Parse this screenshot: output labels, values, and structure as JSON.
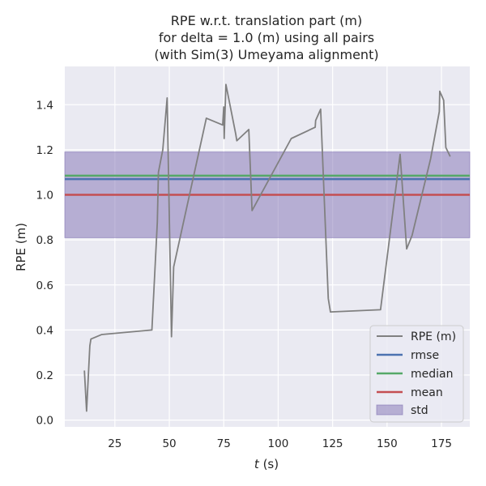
{
  "chart_data": {
    "type": "line",
    "title_lines": [
      "RPE w.r.t. translation part (m)",
      "for delta = 1.0 (m) using all pairs",
      "(with Sim(3) Umeyama alignment)"
    ],
    "xlabel_italic": "t",
    "xlabel_rest": " (s)",
    "ylabel": "RPE (m)",
    "xlim": [
      2,
      188
    ],
    "ylim": [
      -0.03,
      1.57
    ],
    "xticks": [
      25,
      50,
      75,
      100,
      125,
      150,
      175
    ],
    "xtick_labels": [
      "25",
      "50",
      "75",
      "100",
      "125",
      "150",
      "175"
    ],
    "yticks": [
      0.0,
      0.2,
      0.4,
      0.6,
      0.8,
      1.0,
      1.2,
      1.4
    ],
    "ytick_labels": [
      "0.0",
      "0.2",
      "0.4",
      "0.6",
      "0.8",
      "1.0",
      "1.2",
      "1.4"
    ],
    "grid": true,
    "legend_position": "lower-right",
    "series": [
      {
        "name": "RPE (m)",
        "color": "#808080",
        "x": [
          11,
          12,
          13.5,
          14,
          19,
          42,
          44.5,
          45,
          47,
          49,
          51,
          52,
          67,
          74.5,
          75,
          75.2,
          76,
          80.5,
          81,
          86.5,
          88,
          106,
          117,
          117.2,
          119.5,
          123,
          124,
          147,
          156,
          159,
          161.5,
          170,
          174,
          174.2,
          176,
          177,
          179
        ],
        "y": [
          0.22,
          0.04,
          0.33,
          0.36,
          0.38,
          0.4,
          0.88,
          1.1,
          1.2,
          1.43,
          0.37,
          0.68,
          1.34,
          1.31,
          1.39,
          1.25,
          1.49,
          1.27,
          1.24,
          1.29,
          0.93,
          1.25,
          1.3,
          1.33,
          1.38,
          0.54,
          0.48,
          0.49,
          1.18,
          0.76,
          0.82,
          1.16,
          1.37,
          1.46,
          1.42,
          1.21,
          1.17
        ]
      }
    ],
    "stats": {
      "rmse": 1.07,
      "median": 1.085,
      "mean": 1.0,
      "std_band": [
        0.81,
        1.19
      ]
    },
    "legend_labels": {
      "series": "RPE (m)",
      "rmse": "rmse",
      "median": "median",
      "mean": "mean",
      "std": "std"
    },
    "colors": {
      "plot_background": "#eaeaf2",
      "grid": "#ffffff",
      "rmse": "#4c72b0",
      "median": "#55a868",
      "mean": "#c44e52",
      "std_fill": "#8172b3",
      "text": "#262626"
    }
  }
}
